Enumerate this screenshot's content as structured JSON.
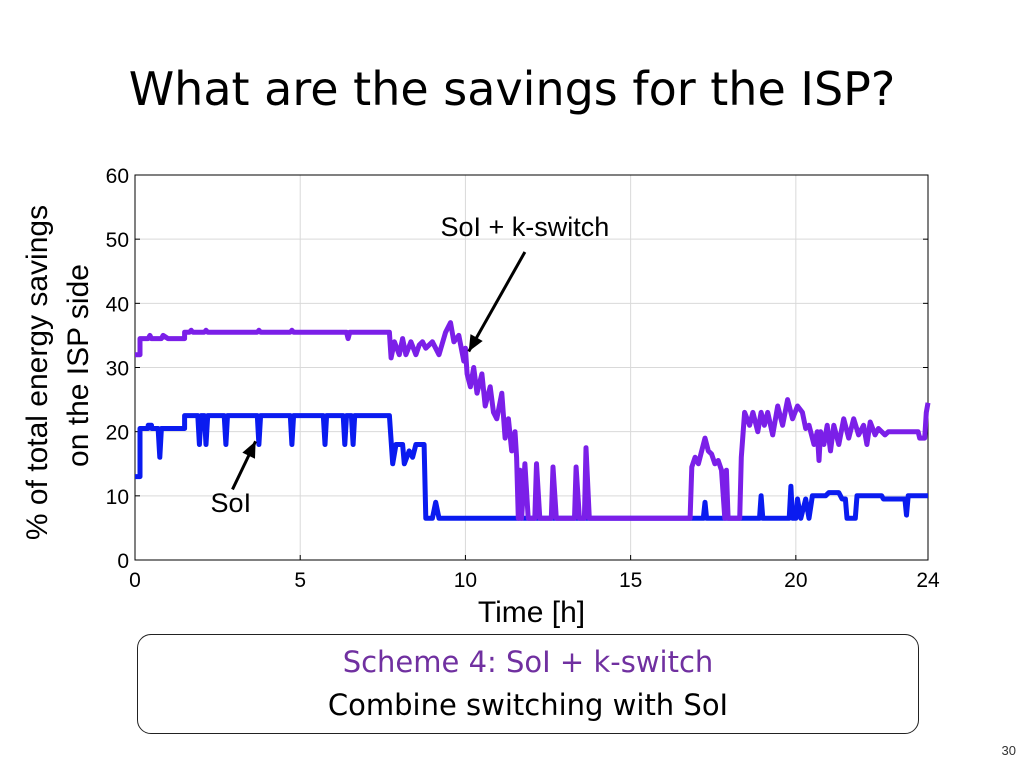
{
  "slide": {
    "title": "What are the savings for the ISP?",
    "page_number": "30"
  },
  "scheme": {
    "title": "Scheme 4: SoI + k-switch",
    "subtitle": "Combine switching with SoI"
  },
  "colors": {
    "soi": "#0a1bf0",
    "soi_kswitch": "#7b1fe8",
    "scheme_title": "#7030a0"
  },
  "chart_data": {
    "type": "line",
    "xlabel": "Time [h]",
    "ylabel_lines": [
      "% of total energy savings",
      "on the ISP side"
    ],
    "xlim": [
      0,
      24
    ],
    "ylim": [
      0,
      60
    ],
    "xticks": [
      0,
      5,
      10,
      15,
      20,
      24
    ],
    "yticks": [
      0,
      10,
      20,
      30,
      40,
      50,
      60
    ],
    "grid": true,
    "series": [
      {
        "name": "SoI",
        "color": "#0a1bf0",
        "points": [
          [
            0,
            13
          ],
          [
            0.15,
            13
          ],
          [
            0.15,
            20.5
          ],
          [
            0.4,
            20.5
          ],
          [
            0.4,
            21
          ],
          [
            0.5,
            21
          ],
          [
            0.5,
            20.5
          ],
          [
            0.7,
            20.5
          ],
          [
            0.75,
            16
          ],
          [
            0.8,
            20.5
          ],
          [
            1.5,
            20.5
          ],
          [
            1.5,
            22.5
          ],
          [
            1.9,
            22.5
          ],
          [
            1.95,
            18
          ],
          [
            2.0,
            22.5
          ],
          [
            2.1,
            22.5
          ],
          [
            2.15,
            18
          ],
          [
            2.2,
            22.5
          ],
          [
            2.7,
            22.5
          ],
          [
            2.75,
            18
          ],
          [
            2.8,
            22.5
          ],
          [
            3.7,
            22.5
          ],
          [
            3.75,
            18
          ],
          [
            3.8,
            22.5
          ],
          [
            4.7,
            22.5
          ],
          [
            4.75,
            18
          ],
          [
            4.8,
            22.5
          ],
          [
            5.7,
            22.5
          ],
          [
            5.75,
            18
          ],
          [
            5.8,
            22.5
          ],
          [
            6.3,
            22.5
          ],
          [
            6.35,
            18
          ],
          [
            6.4,
            22.5
          ],
          [
            6.55,
            22.5
          ],
          [
            6.6,
            18
          ],
          [
            6.65,
            22.5
          ],
          [
            7.7,
            22.5
          ],
          [
            7.8,
            15
          ],
          [
            7.9,
            18
          ],
          [
            8.1,
            18
          ],
          [
            8.15,
            15
          ],
          [
            8.3,
            17
          ],
          [
            8.4,
            16
          ],
          [
            8.5,
            18
          ],
          [
            8.75,
            18
          ],
          [
            8.8,
            6.5
          ],
          [
            9.0,
            6.5
          ],
          [
            9.1,
            9
          ],
          [
            9.2,
            6.5
          ],
          [
            17.2,
            6.5
          ],
          [
            17.25,
            9
          ],
          [
            17.3,
            6.5
          ],
          [
            18.9,
            6.5
          ],
          [
            18.95,
            10
          ],
          [
            19.0,
            6.5
          ],
          [
            19.8,
            6.5
          ],
          [
            19.85,
            11.5
          ],
          [
            19.9,
            6.5
          ],
          [
            20.0,
            6.5
          ],
          [
            20.05,
            9.5
          ],
          [
            20.15,
            6.5
          ],
          [
            20.3,
            9.5
          ],
          [
            20.4,
            6.5
          ],
          [
            20.5,
            10
          ],
          [
            20.9,
            10
          ],
          [
            21.0,
            10.5
          ],
          [
            21.3,
            10.5
          ],
          [
            21.4,
            9.5
          ],
          [
            21.5,
            9.5
          ],
          [
            21.55,
            6.5
          ],
          [
            21.8,
            6.5
          ],
          [
            21.85,
            10
          ],
          [
            22.6,
            10
          ],
          [
            22.65,
            9.5
          ],
          [
            23.3,
            9.5
          ],
          [
            23.35,
            7
          ],
          [
            23.4,
            10
          ],
          [
            24,
            10
          ]
        ]
      },
      {
        "name": "SoI + k-switch",
        "color": "#7b1fe8",
        "points": [
          [
            0,
            32
          ],
          [
            0.15,
            32
          ],
          [
            0.15,
            34.5
          ],
          [
            0.4,
            34.5
          ],
          [
            0.45,
            35
          ],
          [
            0.5,
            34.5
          ],
          [
            0.8,
            34.5
          ],
          [
            0.85,
            35
          ],
          [
            1.0,
            34.5
          ],
          [
            1.5,
            34.5
          ],
          [
            1.5,
            35.5
          ],
          [
            1.65,
            35.5
          ],
          [
            1.7,
            35.8
          ],
          [
            1.75,
            35.5
          ],
          [
            2.1,
            35.5
          ],
          [
            2.15,
            35.8
          ],
          [
            2.2,
            35.5
          ],
          [
            3.7,
            35.5
          ],
          [
            3.75,
            35.8
          ],
          [
            3.8,
            35.5
          ],
          [
            4.7,
            35.5
          ],
          [
            4.75,
            35.8
          ],
          [
            4.8,
            35.5
          ],
          [
            6.4,
            35.5
          ],
          [
            6.45,
            34.5
          ],
          [
            6.5,
            35.5
          ],
          [
            7.7,
            35.5
          ],
          [
            7.75,
            31.5
          ],
          [
            7.85,
            34
          ],
          [
            8.0,
            32
          ],
          [
            8.1,
            34.5
          ],
          [
            8.2,
            32
          ],
          [
            8.35,
            34
          ],
          [
            8.5,
            32
          ],
          [
            8.6,
            33.5
          ],
          [
            8.7,
            34
          ],
          [
            8.8,
            33
          ],
          [
            9.0,
            34
          ],
          [
            9.2,
            32
          ],
          [
            9.4,
            35.5
          ],
          [
            9.55,
            37
          ],
          [
            9.65,
            34
          ],
          [
            9.8,
            35
          ],
          [
            9.95,
            31
          ],
          [
            10.0,
            33
          ],
          [
            10.05,
            29
          ],
          [
            10.15,
            27
          ],
          [
            10.25,
            30
          ],
          [
            10.35,
            26
          ],
          [
            10.5,
            29
          ],
          [
            10.6,
            24
          ],
          [
            10.75,
            27
          ],
          [
            10.85,
            23
          ],
          [
            10.95,
            22
          ],
          [
            11.1,
            26
          ],
          [
            11.2,
            19
          ],
          [
            11.3,
            22
          ],
          [
            11.4,
            17
          ],
          [
            11.5,
            20
          ],
          [
            11.55,
            16
          ],
          [
            11.6,
            6.5
          ],
          [
            11.65,
            14
          ],
          [
            11.7,
            6.5
          ],
          [
            11.8,
            15
          ],
          [
            11.9,
            6.5
          ],
          [
            12.1,
            6.5
          ],
          [
            12.15,
            15
          ],
          [
            12.25,
            6.5
          ],
          [
            12.6,
            6.5
          ],
          [
            12.65,
            14.5
          ],
          [
            12.75,
            6.5
          ],
          [
            13.3,
            6.5
          ],
          [
            13.35,
            14.5
          ],
          [
            13.45,
            6.5
          ],
          [
            13.6,
            6.5
          ],
          [
            13.65,
            17.5
          ],
          [
            13.75,
            6.5
          ],
          [
            16.8,
            6.5
          ],
          [
            16.85,
            14.5
          ],
          [
            16.95,
            16
          ],
          [
            17.05,
            15
          ],
          [
            17.15,
            17
          ],
          [
            17.25,
            19
          ],
          [
            17.35,
            17
          ],
          [
            17.45,
            16.5
          ],
          [
            17.55,
            15
          ],
          [
            17.65,
            15.5
          ],
          [
            17.75,
            14
          ],
          [
            17.85,
            6.5
          ],
          [
            17.9,
            14
          ],
          [
            17.95,
            6.5
          ],
          [
            18.3,
            6.5
          ],
          [
            18.35,
            16
          ],
          [
            18.45,
            23
          ],
          [
            18.6,
            21
          ],
          [
            18.7,
            23
          ],
          [
            18.85,
            20
          ],
          [
            18.95,
            23
          ],
          [
            19.05,
            21
          ],
          [
            19.15,
            23
          ],
          [
            19.3,
            19.5
          ],
          [
            19.45,
            24
          ],
          [
            19.6,
            21
          ],
          [
            19.75,
            25
          ],
          [
            19.9,
            22
          ],
          [
            20.05,
            24
          ],
          [
            20.2,
            23
          ],
          [
            20.3,
            20.5
          ],
          [
            20.4,
            21
          ],
          [
            20.55,
            18
          ],
          [
            20.65,
            20
          ],
          [
            20.7,
            15.5
          ],
          [
            20.75,
            20
          ],
          [
            20.85,
            18
          ],
          [
            20.95,
            21
          ],
          [
            21.05,
            17
          ],
          [
            21.15,
            21
          ],
          [
            21.3,
            18
          ],
          [
            21.45,
            22
          ],
          [
            21.6,
            19
          ],
          [
            21.75,
            22
          ],
          [
            21.9,
            19.5
          ],
          [
            22.05,
            21
          ],
          [
            22.15,
            18
          ],
          [
            22.25,
            21.5
          ],
          [
            22.4,
            19.5
          ],
          [
            22.5,
            20.5
          ],
          [
            22.7,
            19.5
          ],
          [
            22.8,
            20
          ],
          [
            23.7,
            20
          ],
          [
            23.75,
            19
          ],
          [
            23.9,
            19
          ],
          [
            23.95,
            23
          ],
          [
            24,
            24.5
          ]
        ]
      }
    ],
    "annotations": [
      {
        "text": "SoI + k-switch",
        "x": 11.8,
        "y": 50.5,
        "arrow_to": [
          10.1,
          32.5
        ],
        "arrow_from": [
          11.8,
          48
        ]
      },
      {
        "text": "SoI",
        "x": 2.9,
        "y": 7.5,
        "arrow_to": [
          3.65,
          18.5
        ],
        "arrow_from": [
          2.95,
          11
        ]
      }
    ]
  }
}
